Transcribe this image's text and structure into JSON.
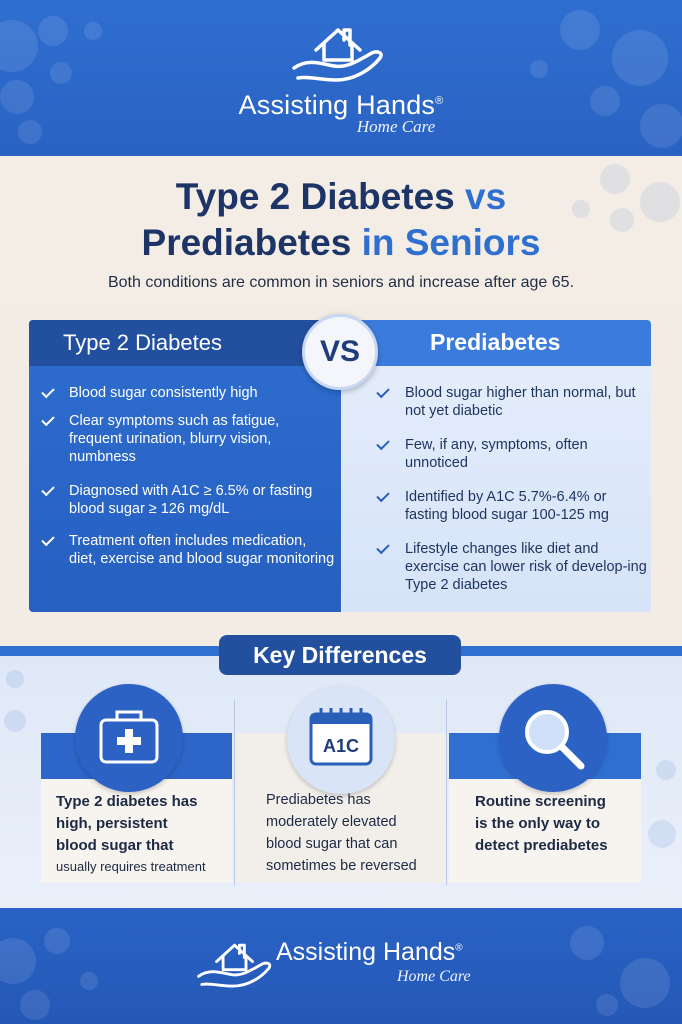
{
  "brand": {
    "name": "Assisting Hands",
    "mark": "®",
    "tagline": "Home Care",
    "logo_icon": "house-in-hand-icon"
  },
  "title": {
    "part1": "Type 2 Diabetes",
    "part2": "vs",
    "part3": "Prediabetes",
    "part4": "in Seniors"
  },
  "subtitle": "Both conditions are common in seniors and increase after age 65.",
  "comparison": {
    "vs_label": "VS",
    "left": {
      "heading": "Type 2 Diabetes",
      "items": [
        "Blood sugar consistently high",
        "Clear symptoms such as fatigue, frequent urination, blurry vision, numbness",
        "Diagnosed with A1C ≥ 6.5% or fasting blood sugar ≥ 126 mg/dL",
        "Treatment often includes medication, diet, exercise and blood sugar monitoring"
      ]
    },
    "right": {
      "heading": "Prediabetes",
      "items": [
        "Blood sugar higher than normal, but not yet diabetic",
        "Few, if any, symptoms, often unnoticed",
        "Identified by A1C 5.7%-6.4% or fasting blood sugar 100-125 mg",
        "Lifestyle changes like diet and exercise can lower risk of develop-ing Type 2 diabetes"
      ]
    }
  },
  "key_differences": {
    "heading": "Key Differences",
    "cards": [
      {
        "icon": "medical-kit-icon",
        "lines": [
          "Type 2 diabetes has",
          "high, persistent",
          "blood sugar that"
        ],
        "last_line": "usually requires treatment"
      },
      {
        "icon": "calendar-a1c-icon",
        "icon_label": "A1C",
        "lines": [
          "Prediabetes has",
          "moderately elevated",
          "blood sugar that can",
          "sometimes be reversed"
        ]
      },
      {
        "icon": "magnifying-glass-icon",
        "lines": [
          "Routine screening",
          "is the only way to",
          "detect prediabetes"
        ]
      }
    ]
  },
  "colors": {
    "primary_blue": "#2f6fd0",
    "navy": "#1c3466",
    "dark_band": "#234f9f",
    "cream": "#f4ede5",
    "light_blue": "#e6eefb"
  }
}
